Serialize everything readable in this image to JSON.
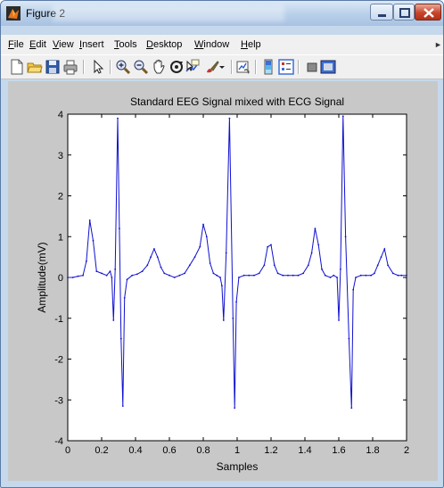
{
  "window": {
    "title": "Figure 2",
    "controls": [
      "minimize",
      "maximize",
      "close"
    ]
  },
  "menu": [
    {
      "label": "File",
      "key": "F",
      "rest": "ile"
    },
    {
      "label": "Edit",
      "key": "E",
      "rest": "dit"
    },
    {
      "label": "View",
      "key": "V",
      "rest": "iew"
    },
    {
      "label": "Insert",
      "key": "I",
      "rest": "nsert"
    },
    {
      "label": "Tools",
      "key": "T",
      "rest": "ools"
    },
    {
      "label": "Desktop",
      "key": "D",
      "rest": "esktop"
    },
    {
      "label": "Window",
      "key": "W",
      "rest": "indow"
    },
    {
      "label": "Help",
      "key": "H",
      "rest": "elp"
    }
  ],
  "toolbar": {
    "icons": [
      "new-figure-icon",
      "open-file-icon",
      "save-icon",
      "print-icon",
      "pointer-icon",
      "zoom-in-icon",
      "zoom-out-icon",
      "pan-icon",
      "rotate-icon",
      "data-cursor-icon",
      "brush-icon",
      "link-plot-icon",
      "colorbar-icon",
      "legend-icon",
      "hide-plot-tools-icon",
      "show-plot-tools-icon"
    ]
  },
  "chart_data": {
    "type": "line",
    "title": "Standard EEG Signal mixed with ECG Signal",
    "xlabel": "Samples",
    "ylabel": "Amplitude(mV)",
    "xlim": [
      0,
      2
    ],
    "ylim": [
      -4,
      4
    ],
    "xticks": [
      "0",
      "0.2",
      "0.4",
      "0.6",
      "0.8",
      "1",
      "1.2",
      "1.4",
      "1.6",
      "1.8",
      "2"
    ],
    "yticks": [
      "4",
      "3",
      "2",
      "1",
      "0",
      "-1",
      "-2",
      "-3",
      "-4"
    ],
    "grid": false,
    "color": "#1010d0",
    "series": [
      {
        "x": [
          0.0,
          0.03,
          0.06,
          0.09,
          0.11,
          0.13,
          0.15,
          0.17,
          0.2,
          0.23,
          0.25,
          0.26,
          0.27,
          0.28,
          0.295,
          0.305,
          0.315,
          0.325,
          0.335,
          0.35,
          0.38,
          0.41,
          0.44,
          0.47,
          0.49,
          0.51,
          0.53,
          0.55,
          0.57,
          0.6,
          0.63,
          0.66,
          0.69,
          0.72,
          0.75,
          0.78,
          0.8,
          0.82,
          0.84,
          0.86,
          0.88,
          0.9,
          0.91,
          0.92,
          0.935,
          0.955,
          0.975,
          0.985,
          0.995,
          1.01,
          1.04,
          1.07,
          1.1,
          1.13,
          1.16,
          1.18,
          1.2,
          1.22,
          1.24,
          1.27,
          1.3,
          1.33,
          1.36,
          1.39,
          1.42,
          1.44,
          1.46,
          1.48,
          1.5,
          1.52,
          1.55,
          1.57,
          1.59,
          1.6,
          1.61,
          1.625,
          1.64,
          1.66,
          1.675,
          1.685,
          1.7,
          1.73,
          1.76,
          1.79,
          1.81,
          1.83,
          1.85,
          1.87,
          1.89,
          1.92,
          1.95,
          1.97,
          2.0
        ],
        "y": [
          0.0,
          0.0,
          0.03,
          0.05,
          0.4,
          1.4,
          0.9,
          0.15,
          0.1,
          0.05,
          0.15,
          0.0,
          -1.05,
          0.2,
          3.9,
          1.2,
          -1.5,
          -3.15,
          -0.5,
          -0.05,
          0.05,
          0.08,
          0.15,
          0.3,
          0.5,
          0.7,
          0.5,
          0.25,
          0.1,
          0.05,
          0.0,
          0.05,
          0.1,
          0.3,
          0.5,
          0.75,
          1.3,
          1.0,
          0.35,
          0.1,
          0.05,
          0.0,
          -0.2,
          -1.05,
          0.6,
          3.9,
          -1.0,
          -3.2,
          -0.6,
          0.0,
          0.05,
          0.05,
          0.05,
          0.1,
          0.3,
          0.75,
          0.8,
          0.3,
          0.1,
          0.05,
          0.05,
          0.05,
          0.05,
          0.1,
          0.3,
          0.6,
          1.2,
          0.8,
          0.2,
          0.05,
          0.0,
          0.05,
          0.0,
          -1.05,
          0.2,
          3.95,
          1.0,
          -1.5,
          -3.2,
          -0.3,
          0.0,
          0.05,
          0.05,
          0.05,
          0.1,
          0.3,
          0.5,
          0.7,
          0.3,
          0.1,
          0.05,
          0.05,
          0.05
        ]
      }
    ]
  }
}
